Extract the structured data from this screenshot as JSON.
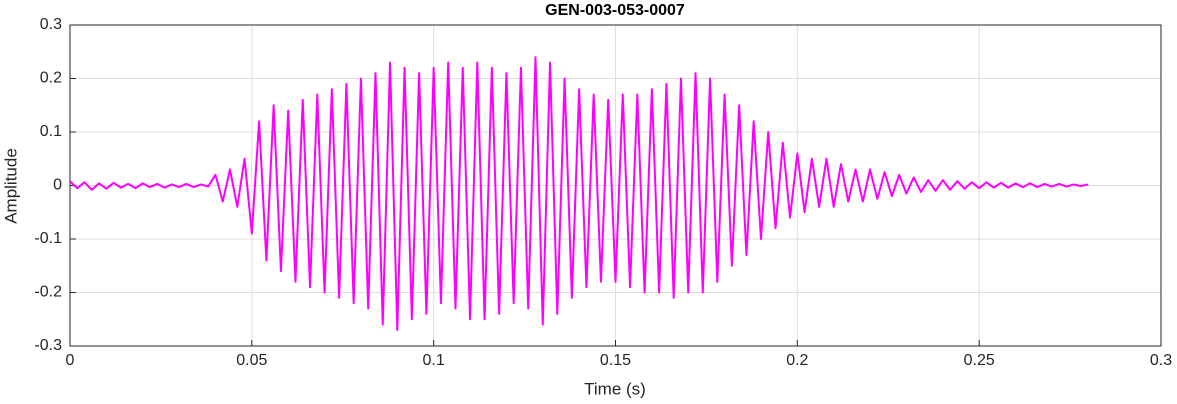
{
  "chart_data": {
    "type": "line",
    "title": "GEN-003-053-0007",
    "x_label": "Time (s)",
    "y_label": "Amplitude",
    "xlim": [
      0,
      0.3
    ],
    "ylim": [
      -0.3,
      0.3
    ],
    "xticks": [
      0,
      0.05,
      0.1,
      0.15,
      0.2,
      0.25,
      0.3
    ],
    "yticks": [
      -0.3,
      -0.2,
      -0.1,
      0,
      0.1,
      0.2,
      0.3
    ],
    "grid": true,
    "series": [
      {
        "color": "#ff00ff",
        "x": [
          0,
          0.002,
          0.004,
          0.006,
          0.008,
          0.01,
          0.012,
          0.014,
          0.016,
          0.018,
          0.02,
          0.022,
          0.024,
          0.026,
          0.028,
          0.03,
          0.032,
          0.034,
          0.036,
          0.038,
          0.04,
          0.042,
          0.044,
          0.046,
          0.048,
          0.05,
          0.052,
          0.054,
          0.056,
          0.058,
          0.06,
          0.062,
          0.064,
          0.066,
          0.068,
          0.07,
          0.072,
          0.074,
          0.076,
          0.078,
          0.08,
          0.082,
          0.084,
          0.086,
          0.088,
          0.09,
          0.092,
          0.094,
          0.096,
          0.098,
          0.1,
          0.102,
          0.104,
          0.106,
          0.108,
          0.11,
          0.112,
          0.114,
          0.116,
          0.118,
          0.12,
          0.122,
          0.124,
          0.126,
          0.128,
          0.13,
          0.132,
          0.134,
          0.136,
          0.138,
          0.14,
          0.142,
          0.144,
          0.146,
          0.148,
          0.15,
          0.152,
          0.154,
          0.156,
          0.158,
          0.16,
          0.162,
          0.164,
          0.166,
          0.168,
          0.17,
          0.172,
          0.174,
          0.176,
          0.178,
          0.18,
          0.182,
          0.184,
          0.186,
          0.188,
          0.19,
          0.192,
          0.194,
          0.196,
          0.198,
          0.2,
          0.202,
          0.204,
          0.206,
          0.208,
          0.21,
          0.212,
          0.214,
          0.216,
          0.218,
          0.22,
          0.222,
          0.224,
          0.226,
          0.228,
          0.23,
          0.232,
          0.234,
          0.236,
          0.238,
          0.24,
          0.242,
          0.244,
          0.246,
          0.248,
          0.25,
          0.252,
          0.254,
          0.256,
          0.258,
          0.26,
          0.262,
          0.264,
          0.266,
          0.268,
          0.27,
          0.272,
          0.274,
          0.276,
          0.278,
          0.28
        ],
        "values": [
          0.008,
          -0.005,
          0.006,
          -0.008,
          0.004,
          -0.006,
          0.005,
          -0.004,
          0.003,
          -0.005,
          0.004,
          -0.003,
          0.003,
          -0.004,
          0.002,
          -0.003,
          0.003,
          -0.003,
          0.002,
          -0.002,
          0.02,
          -0.03,
          0.03,
          -0.04,
          0.05,
          -0.09,
          0.12,
          -0.14,
          0.15,
          -0.16,
          0.14,
          -0.18,
          0.16,
          -0.19,
          0.17,
          -0.2,
          0.18,
          -0.21,
          0.19,
          -0.22,
          0.2,
          -0.23,
          0.21,
          -0.26,
          0.23,
          -0.27,
          0.22,
          -0.25,
          0.21,
          -0.24,
          0.22,
          -0.22,
          0.23,
          -0.23,
          0.22,
          -0.25,
          0.23,
          -0.25,
          0.22,
          -0.24,
          0.21,
          -0.22,
          0.22,
          -0.23,
          0.24,
          -0.26,
          0.23,
          -0.24,
          0.2,
          -0.21,
          0.18,
          -0.19,
          0.17,
          -0.18,
          0.16,
          -0.18,
          0.17,
          -0.19,
          0.17,
          -0.2,
          0.18,
          -0.2,
          0.19,
          -0.21,
          0.2,
          -0.2,
          0.21,
          -0.2,
          0.2,
          -0.18,
          0.17,
          -0.15,
          0.15,
          -0.13,
          0.12,
          -0.1,
          0.1,
          -0.08,
          0.08,
          -0.06,
          0.06,
          -0.05,
          0.05,
          -0.04,
          0.05,
          -0.04,
          0.04,
          -0.03,
          0.03,
          -0.03,
          0.03,
          -0.025,
          0.025,
          -0.02,
          0.02,
          -0.015,
          0.015,
          -0.012,
          0.01,
          -0.01,
          0.01,
          -0.008,
          0.008,
          -0.006,
          0.006,
          -0.005,
          0.006,
          -0.004,
          0.005,
          -0.004,
          0.004,
          -0.003,
          0.004,
          -0.003,
          0.003,
          -0.002,
          0.003,
          -0.002,
          0.002,
          -0.001,
          0.002
        ]
      }
    ]
  }
}
